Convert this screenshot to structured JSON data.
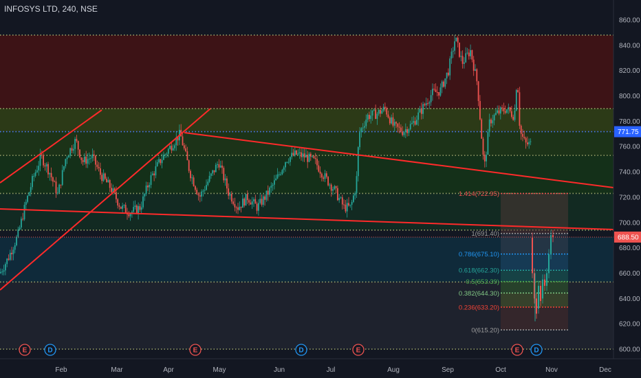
{
  "header": {
    "symbol_title": "INFOSYS LTD, 240, NSE"
  },
  "colors": {
    "background": "#131722",
    "up": "#26a69a",
    "down": "#ef5350",
    "trendline": "#ff2a2a",
    "current_price": "#ef5350",
    "last_tag": "#2962ff"
  },
  "price_axis": {
    "ticks": [
      "860.00",
      "840.00",
      "820.00",
      "800.00",
      "780.00",
      "760.00",
      "740.00",
      "720.00",
      "700.00",
      "680.00",
      "660.00",
      "640.00",
      "620.00",
      "600.00"
    ],
    "tick_values": [
      860,
      840,
      820,
      800,
      780,
      760,
      740,
      720,
      700,
      680,
      660,
      640,
      620,
      600
    ],
    "range": [
      596,
      872
    ]
  },
  "time_axis": {
    "labels": [
      "Feb",
      "Mar",
      "Apr",
      "May",
      "Jun",
      "Jul",
      "Aug",
      "Sep",
      "Oct",
      "Nov",
      "Dec"
    ]
  },
  "price_tags": {
    "level_tag": {
      "value": 771.75,
      "text": "771.75"
    },
    "current_tag": {
      "value": 688.5,
      "text": "688.50"
    }
  },
  "fibonacci": {
    "levels": [
      {
        "ratio": "1.414",
        "price": 722.95,
        "label": "1.414(722.95)",
        "color": "#ef5350"
      },
      {
        "ratio": "1",
        "price": 691.4,
        "label": "1(691.40)",
        "color": "#9e9e9e"
      },
      {
        "ratio": "0.786",
        "price": 675.1,
        "label": "0.786(675.10)",
        "color": "#2196f3"
      },
      {
        "ratio": "0.618",
        "price": 662.3,
        "label": "0.618(662.30)",
        "color": "#26a69a"
      },
      {
        "ratio": "0.5",
        "price": 653.39,
        "label": "0.5(653.39)",
        "color": "#4caf50"
      },
      {
        "ratio": "0.382",
        "price": 644.3,
        "label": "0.382(644.30)",
        "color": "#81c784"
      },
      {
        "ratio": "0.236",
        "price": 633.2,
        "label": "0.236(633.20)",
        "color": "#f44336"
      },
      {
        "ratio": "0",
        "price": 615.2,
        "label": "0(615.20)",
        "color": "#9e9e9e"
      }
    ]
  },
  "zones": [
    {
      "from": 790,
      "to": 848,
      "color": "#3d1316"
    },
    {
      "from": 771.75,
      "to": 790,
      "color": "#2c3a17"
    },
    {
      "from": 753,
      "to": 771.75,
      "color": "#1c3318"
    },
    {
      "from": 723,
      "to": 753,
      "color": "#143019"
    },
    {
      "from": 694,
      "to": 723,
      "color": "#122a22"
    },
    {
      "from": 653,
      "to": 688.5,
      "color": "#0f2a3a"
    },
    {
      "from": 600,
      "to": 653,
      "color": "#1e222d"
    }
  ],
  "dotted_levels": [
    848,
    790,
    771.75,
    753,
    723,
    694,
    653,
    600
  ],
  "events": [
    {
      "type": "earnings",
      "text": "E",
      "color": "#ef5350"
    },
    {
      "type": "dividend",
      "text": "D",
      "color": "#2196f3"
    },
    {
      "type": "earnings",
      "text": "E",
      "color": "#ef5350"
    },
    {
      "type": "dividend",
      "text": "D",
      "color": "#2196f3"
    },
    {
      "type": "earnings",
      "text": "E",
      "color": "#ef5350"
    },
    {
      "type": "earnings",
      "text": "E",
      "color": "#ef5350"
    },
    {
      "type": "dividend",
      "text": "D",
      "color": "#2196f3"
    }
  ],
  "chart_data": {
    "type": "candlestick",
    "title": "INFOSYS LTD, 240, NSE",
    "ylim": [
      596,
      872
    ],
    "x": [
      "Feb",
      "Mar",
      "Apr",
      "May",
      "Jun",
      "Jul",
      "Aug",
      "Sep",
      "Oct",
      "Nov",
      "Dec"
    ],
    "series": [
      {
        "values": [
          {
            "x": "Jan",
            "y": 665
          },
          {
            "x": "Jan",
            "y": 690
          },
          {
            "x": "Jan",
            "y": 738
          },
          {
            "x": "Feb",
            "y": 752
          },
          {
            "x": "Feb",
            "y": 770
          },
          {
            "x": "Feb",
            "y": 748
          },
          {
            "x": "Mar",
            "y": 708
          },
          {
            "x": "Mar",
            "y": 722
          },
          {
            "x": "Apr",
            "y": 770
          },
          {
            "x": "Apr",
            "y": 742
          },
          {
            "x": "Apr",
            "y": 720
          },
          {
            "x": "May",
            "y": 730
          },
          {
            "x": "May",
            "y": 705
          },
          {
            "x": "May",
            "y": 722
          },
          {
            "x": "Jun",
            "y": 735
          },
          {
            "x": "Jun",
            "y": 752
          },
          {
            "x": "Jun",
            "y": 745
          },
          {
            "x": "Jul",
            "y": 718
          },
          {
            "x": "Jul",
            "y": 712
          },
          {
            "x": "Aug",
            "y": 780
          },
          {
            "x": "Aug",
            "y": 790
          },
          {
            "x": "Aug",
            "y": 770
          },
          {
            "x": "Sep",
            "y": 845
          },
          {
            "x": "Sep",
            "y": 828
          },
          {
            "x": "Sep",
            "y": 745
          },
          {
            "x": "Oct",
            "y": 790
          },
          {
            "x": "Oct",
            "y": 765
          },
          {
            "x": "Oct",
            "y": 652
          },
          {
            "x": "Oct",
            "y": 630
          },
          {
            "x": "Nov",
            "y": 688.5
          }
        ]
      }
    ]
  }
}
